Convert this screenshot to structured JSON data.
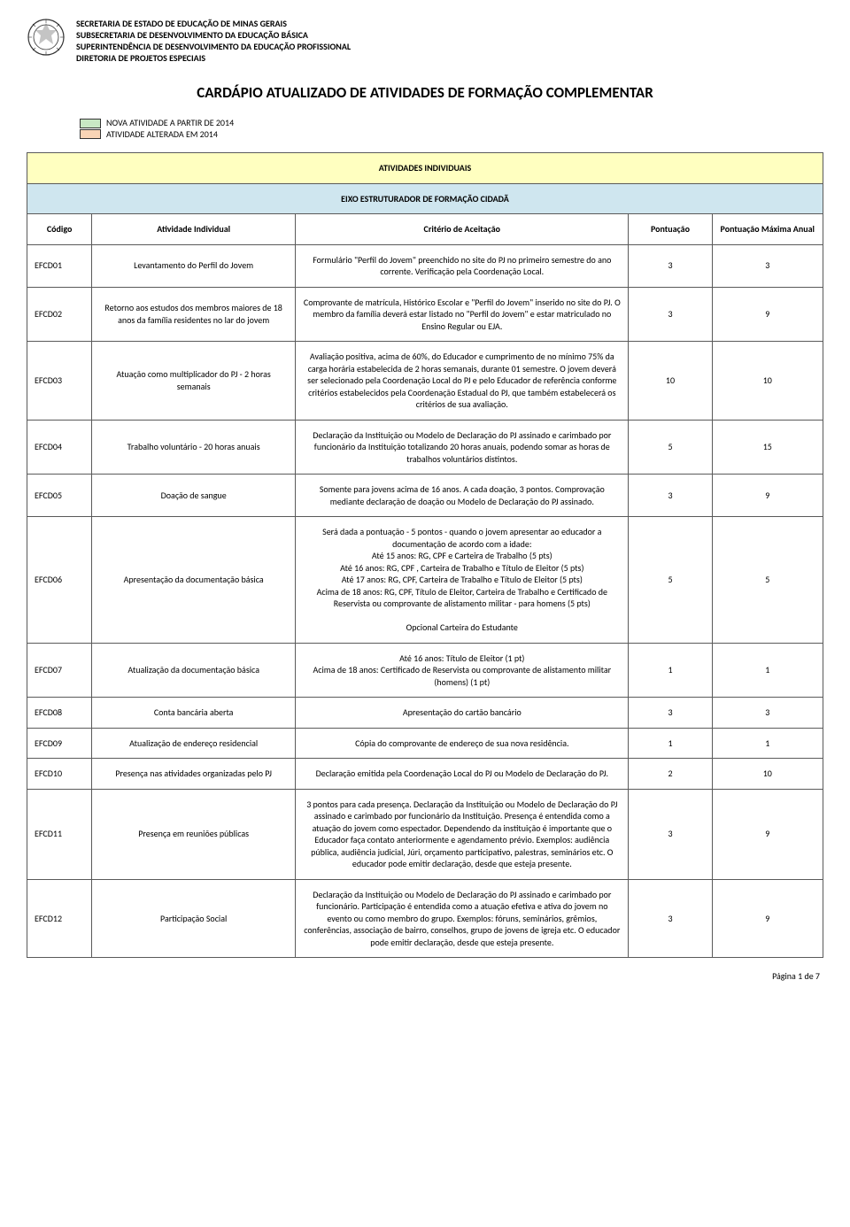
{
  "header": {
    "lines": [
      "SECRETARIA DE ESTADO DE EDUCAÇÃO DE MINAS GERAIS",
      "SUBSECRETARIA DE DESENVOLVIMENTO DA EDUCAÇÃO BÁSICA",
      "SUPERINTENDÊNCIA DE DESENVOLVIMENTO DA EDUCAÇÃO PROFISSIONAL",
      "DIRETORIA DE PROJETOS ESPECIAIS"
    ]
  },
  "title": "CARDÁPIO ATUALIZADO DE ATIVIDADES DE FORMAÇÃO COMPLEMENTAR",
  "legend": {
    "items": [
      {
        "color": "#c8e8c4",
        "label": "NOVA ATIVIDADE A PARTIR DE 2014"
      },
      {
        "color": "#f9d4b6",
        "label": "ATIVIDADE ALTERADA EM 2014"
      }
    ]
  },
  "bands": {
    "yellow": "ATIVIDADES INDIVIDUAIS",
    "blue": "EIXO ESTRUTURADOR DE FORMAÇÃO CIDADÃ"
  },
  "columns": {
    "codigo": "Código",
    "atividade": "Atividade Individual",
    "criterio": "Critério de Aceitação",
    "pontuacao": "Pontuação",
    "maxima": "Pontuação Máxima Anual"
  },
  "colors": {
    "band_yellow_bg": "#ffffc0",
    "band_blue_bg": "#cfe6ef",
    "border": "#5a5a5a",
    "legend_green": "#c8e8c4",
    "legend_orange": "#f9d4b6"
  },
  "rows": [
    {
      "code": "EFCD01",
      "activity": "Levantamento do Perfil do Jovem",
      "criterion": "Formulário \"Perfil do Jovem\" preenchido no site do PJ no primeiro semestre do ano corrente. Verificação pela Coordenação Local.",
      "points": "3",
      "max": "3"
    },
    {
      "code": "EFCD02",
      "activity": "Retorno aos estudos dos membros maiores de 18 anos da família residentes no lar do jovem",
      "criterion": "Comprovante de matrícula, Histórico Escolar e  \"Perfil do Jovem\" inserido no site do PJ. O  membro da família deverá estar listado no \"Perfil do Jovem\" e estar matriculado no Ensino Regular ou EJA.",
      "points": "3",
      "max": "9"
    },
    {
      "code": "EFCD03",
      "activity": "Atuação como multiplicador do PJ - 2 horas semanais",
      "criterion": "Avaliação positiva, acima de 60%, do Educador e cumprimento de no mínimo 75% da carga horária estabelecida de 2 horas semanais, durante 01 semestre. O jovem deverá ser selecionado pela Coordenação Local do PJ e pelo Educador de referência conforme critérios estabelecidos pela Coordenação Estadual do PJ, que também estabelecerá os critérios de sua avaliação.",
      "points": "10",
      "max": "10"
    },
    {
      "code": "EFCD04",
      "activity": "Trabalho voluntário - 20 horas anuais",
      "criterion": "Declaração da Instituição ou Modelo de Declaração do PJ assinado e carimbado por funcionário da Instituição totalizando 20 horas anuais, podendo somar as horas de trabalhos voluntários distintos.",
      "points": "5",
      "max": "15"
    },
    {
      "code": "EFCD05",
      "activity": "Doação de sangue",
      "criterion": "Somente para jovens acima de 16 anos. A cada doação, 3 pontos. Comprovação mediante declaração de doação ou Modelo de Declaração do PJ assinado.",
      "points": "3",
      "max": "9"
    },
    {
      "code": "EFCD06",
      "activity": "Apresentação da documentação básica",
      "criterion": "Será dada a pontuação - 5 pontos - quando o jovem apresentar ao educador a documentação de acordo com a idade:\nAté 15 anos: RG, CPF e Carteira de Trabalho (5 pts)\nAté 16 anos: RG, CPF , Carteira de Trabalho e Título de Eleitor (5 pts)\nAté 17 anos: RG, CPF, Carteira de Trabalho e Título de Eleitor (5 pts)\nAcima de 18 anos: RG, CPF, Título de Eleitor, Carteira de Trabalho e Certificado de Reservista ou comprovante de alistamento militar - para homens (5 pts)\n\nOpcional Carteira do Estudante",
      "points": "5",
      "max": "5"
    },
    {
      "code": "EFCD07",
      "activity": "Atualização da documentação básica",
      "criterion": "Até 16 anos: Título de Eleitor (1 pt)\nAcima de 18 anos: Certificado de Reservista ou comprovante de alistamento militar (homens) (1 pt)",
      "points": "1",
      "max": "1"
    },
    {
      "code": "EFCD08",
      "activity": "Conta bancária aberta",
      "criterion": "Apresentação do cartão bancário",
      "points": "3",
      "max": "3"
    },
    {
      "code": "EFCD09",
      "activity": "Atualização de endereço residencial",
      "criterion": "Cópia do comprovante de endereço de sua nova residência.",
      "points": "1",
      "max": "1"
    },
    {
      "code": "EFCD10",
      "activity": "Presença nas atividades organizadas pelo PJ",
      "criterion": "Declaração emitida pela Coordenação Local do PJ ou Modelo de Declaração do PJ.",
      "points": "2",
      "max": "10"
    },
    {
      "code": "EFCD11",
      "activity": "Presença em reuniões públicas",
      "criterion": "3 pontos para cada presença. Declaração da Instituição ou Modelo de Declaração do PJ assinado e carimbado por funcionário da Instituição. Presença é entendida como a atuação do jovem como espectador. Dependendo da instituição é importante que o Educador faça contato anteriormente e agendamento prévio. Exemplos: audiência pública, audiência judicial, Júri, orçamento participativo, palestras, seminários etc. O educador pode emitir declaração, desde que esteja presente.",
      "points": "3",
      "max": "9"
    },
    {
      "code": "EFCD12",
      "activity": "Participação Social",
      "criterion": "Declaração da Instituição ou Modelo de Declaração do PJ assinado e carimbado por funcionário. Participação é entendida como a atuação efetiva e ativa do jovem no evento ou como membro do grupo. Exemplos: fóruns, seminários, grêmios, conferências, associação de bairro, conselhos, grupo de jovens de igreja etc. O educador pode emitir declaração, desde que esteja presente.",
      "points": "3",
      "max": "9"
    }
  ],
  "footer": "Página 1 de 7"
}
